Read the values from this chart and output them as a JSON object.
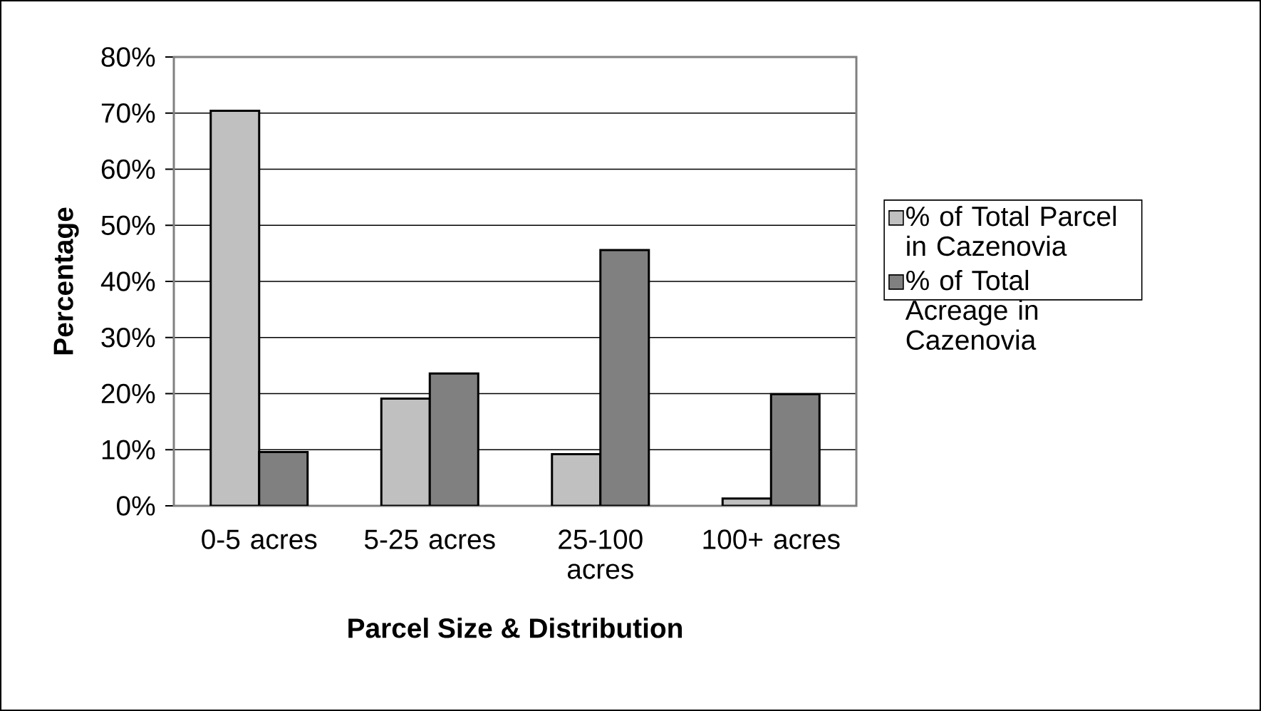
{
  "chart_data": {
    "type": "bar",
    "xlabel": "Parcel Size & Distribution",
    "ylabel": "Percentage",
    "categories": [
      "0-5 acres",
      "5-25 acres",
      "25-100 acres",
      "100+ acres"
    ],
    "series": [
      {
        "name": "% of Total Parcel in Cazenovia",
        "color": "#c0c0c0",
        "values": [
          70.4,
          19.1,
          9.2,
          1.3
        ]
      },
      {
        "name": "% of Total Acreage in Cazenovia",
        "color": "#808080",
        "values": [
          9.6,
          23.6,
          45.6,
          19.9
        ]
      }
    ],
    "ylim": [
      0,
      80
    ],
    "yticks": [
      {
        "value": 0,
        "label": "0%"
      },
      {
        "value": 10,
        "label": "10%"
      },
      {
        "value": 20,
        "label": "20%"
      },
      {
        "value": 30,
        "label": "30%"
      },
      {
        "value": 40,
        "label": "40%"
      },
      {
        "value": 50,
        "label": "50%"
      },
      {
        "value": 60,
        "label": "60%"
      },
      {
        "value": 70,
        "label": "70%"
      },
      {
        "value": 80,
        "label": "80%"
      }
    ],
    "grid": "y",
    "legend": "right"
  }
}
